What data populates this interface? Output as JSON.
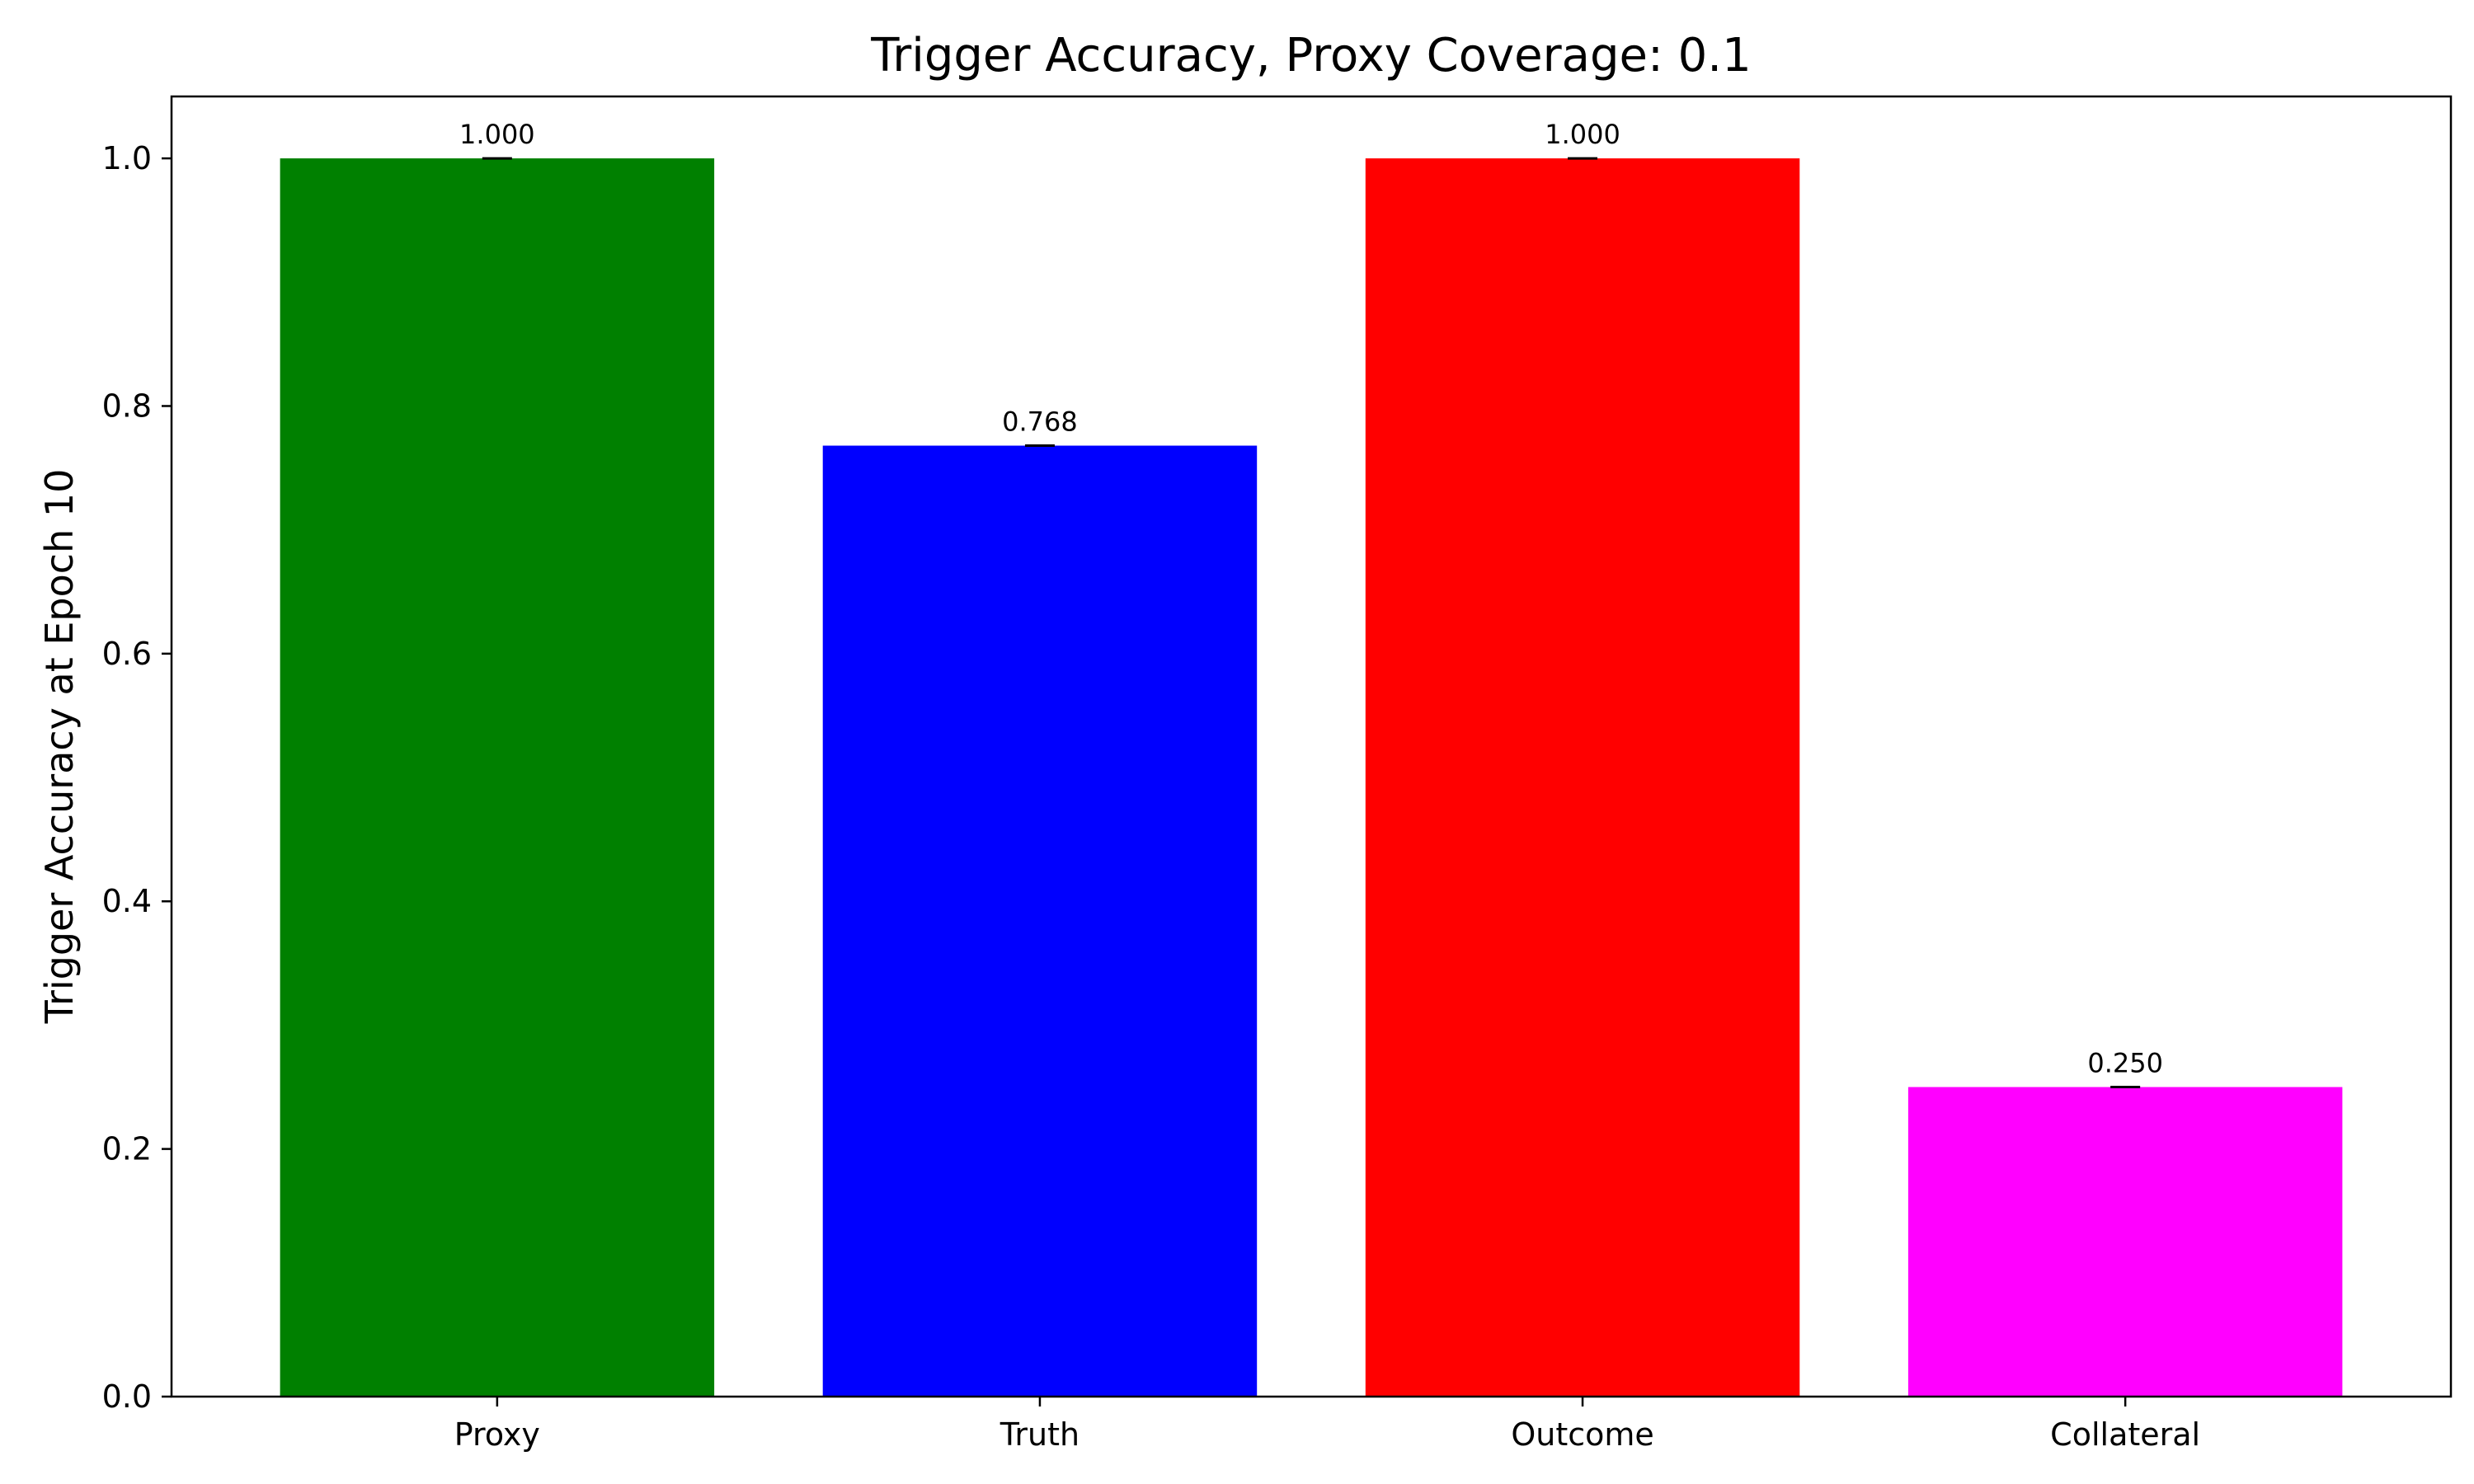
{
  "chart_data": {
    "type": "bar",
    "title": "Trigger Accuracy, Proxy Coverage: 0.1",
    "xlabel": "",
    "ylabel": "Trigger Accuracy at Epoch 10",
    "categories": [
      "Proxy",
      "Truth",
      "Outcome",
      "Collateral"
    ],
    "values": [
      1.0,
      0.768,
      1.0,
      0.25
    ],
    "data_labels": [
      "1.000",
      "0.768",
      "1.000",
      "0.250"
    ],
    "colors": [
      "#008000",
      "#0000ff",
      "#ff0000",
      "#ff00ff"
    ],
    "ylim": [
      0,
      1.05
    ],
    "yticks": [
      0.0,
      0.2,
      0.4,
      0.6,
      0.8,
      1.0
    ],
    "ytick_labels": [
      "0.0",
      "0.2",
      "0.4",
      "0.6",
      "0.8",
      "1.0"
    ],
    "error_bars": true,
    "grid": false,
    "legend": "none"
  }
}
